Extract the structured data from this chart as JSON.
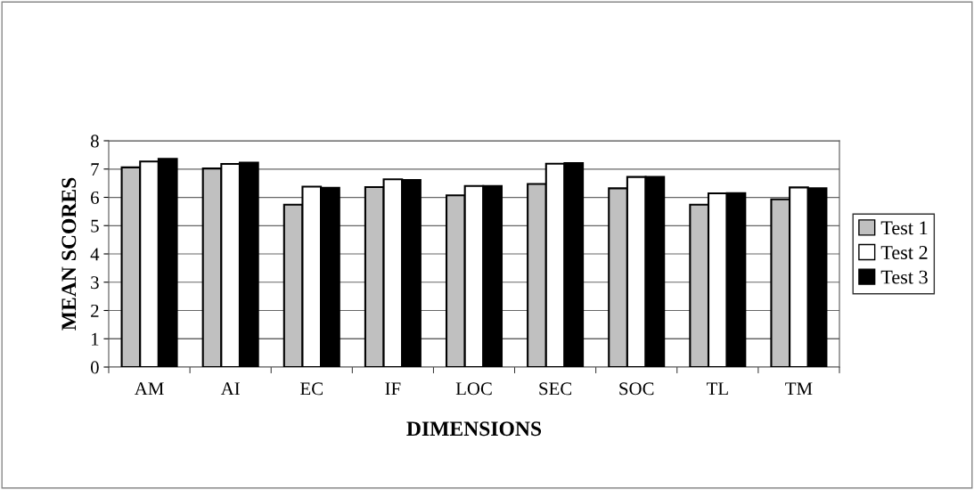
{
  "chart_data": {
    "type": "bar",
    "xlabel": "DIMENSIONS",
    "ylabel": "MEAN SCORES",
    "categories": [
      "AM",
      "AI",
      "EC",
      "IF",
      "LOC",
      "SEC",
      "SOC",
      "TL",
      "TM"
    ],
    "series": [
      {
        "name": "Test 1",
        "color": "#c0c0c0",
        "values": [
          7.06,
          7.02,
          5.74,
          6.36,
          6.07,
          6.47,
          6.32,
          5.74,
          5.93
        ]
      },
      {
        "name": "Test 2",
        "color": "#ffffff",
        "values": [
          7.27,
          7.18,
          6.38,
          6.64,
          6.4,
          7.19,
          6.72,
          6.14,
          6.35
        ]
      },
      {
        "name": "Test 3",
        "color": "#000000",
        "values": [
          7.36,
          7.23,
          6.34,
          6.61,
          6.4,
          7.21,
          6.72,
          6.15,
          6.32
        ]
      }
    ],
    "ylim": [
      0,
      8
    ],
    "yticks": [
      0,
      1,
      2,
      3,
      4,
      5,
      6,
      7,
      8
    ],
    "grid": "y",
    "legend": "right"
  }
}
